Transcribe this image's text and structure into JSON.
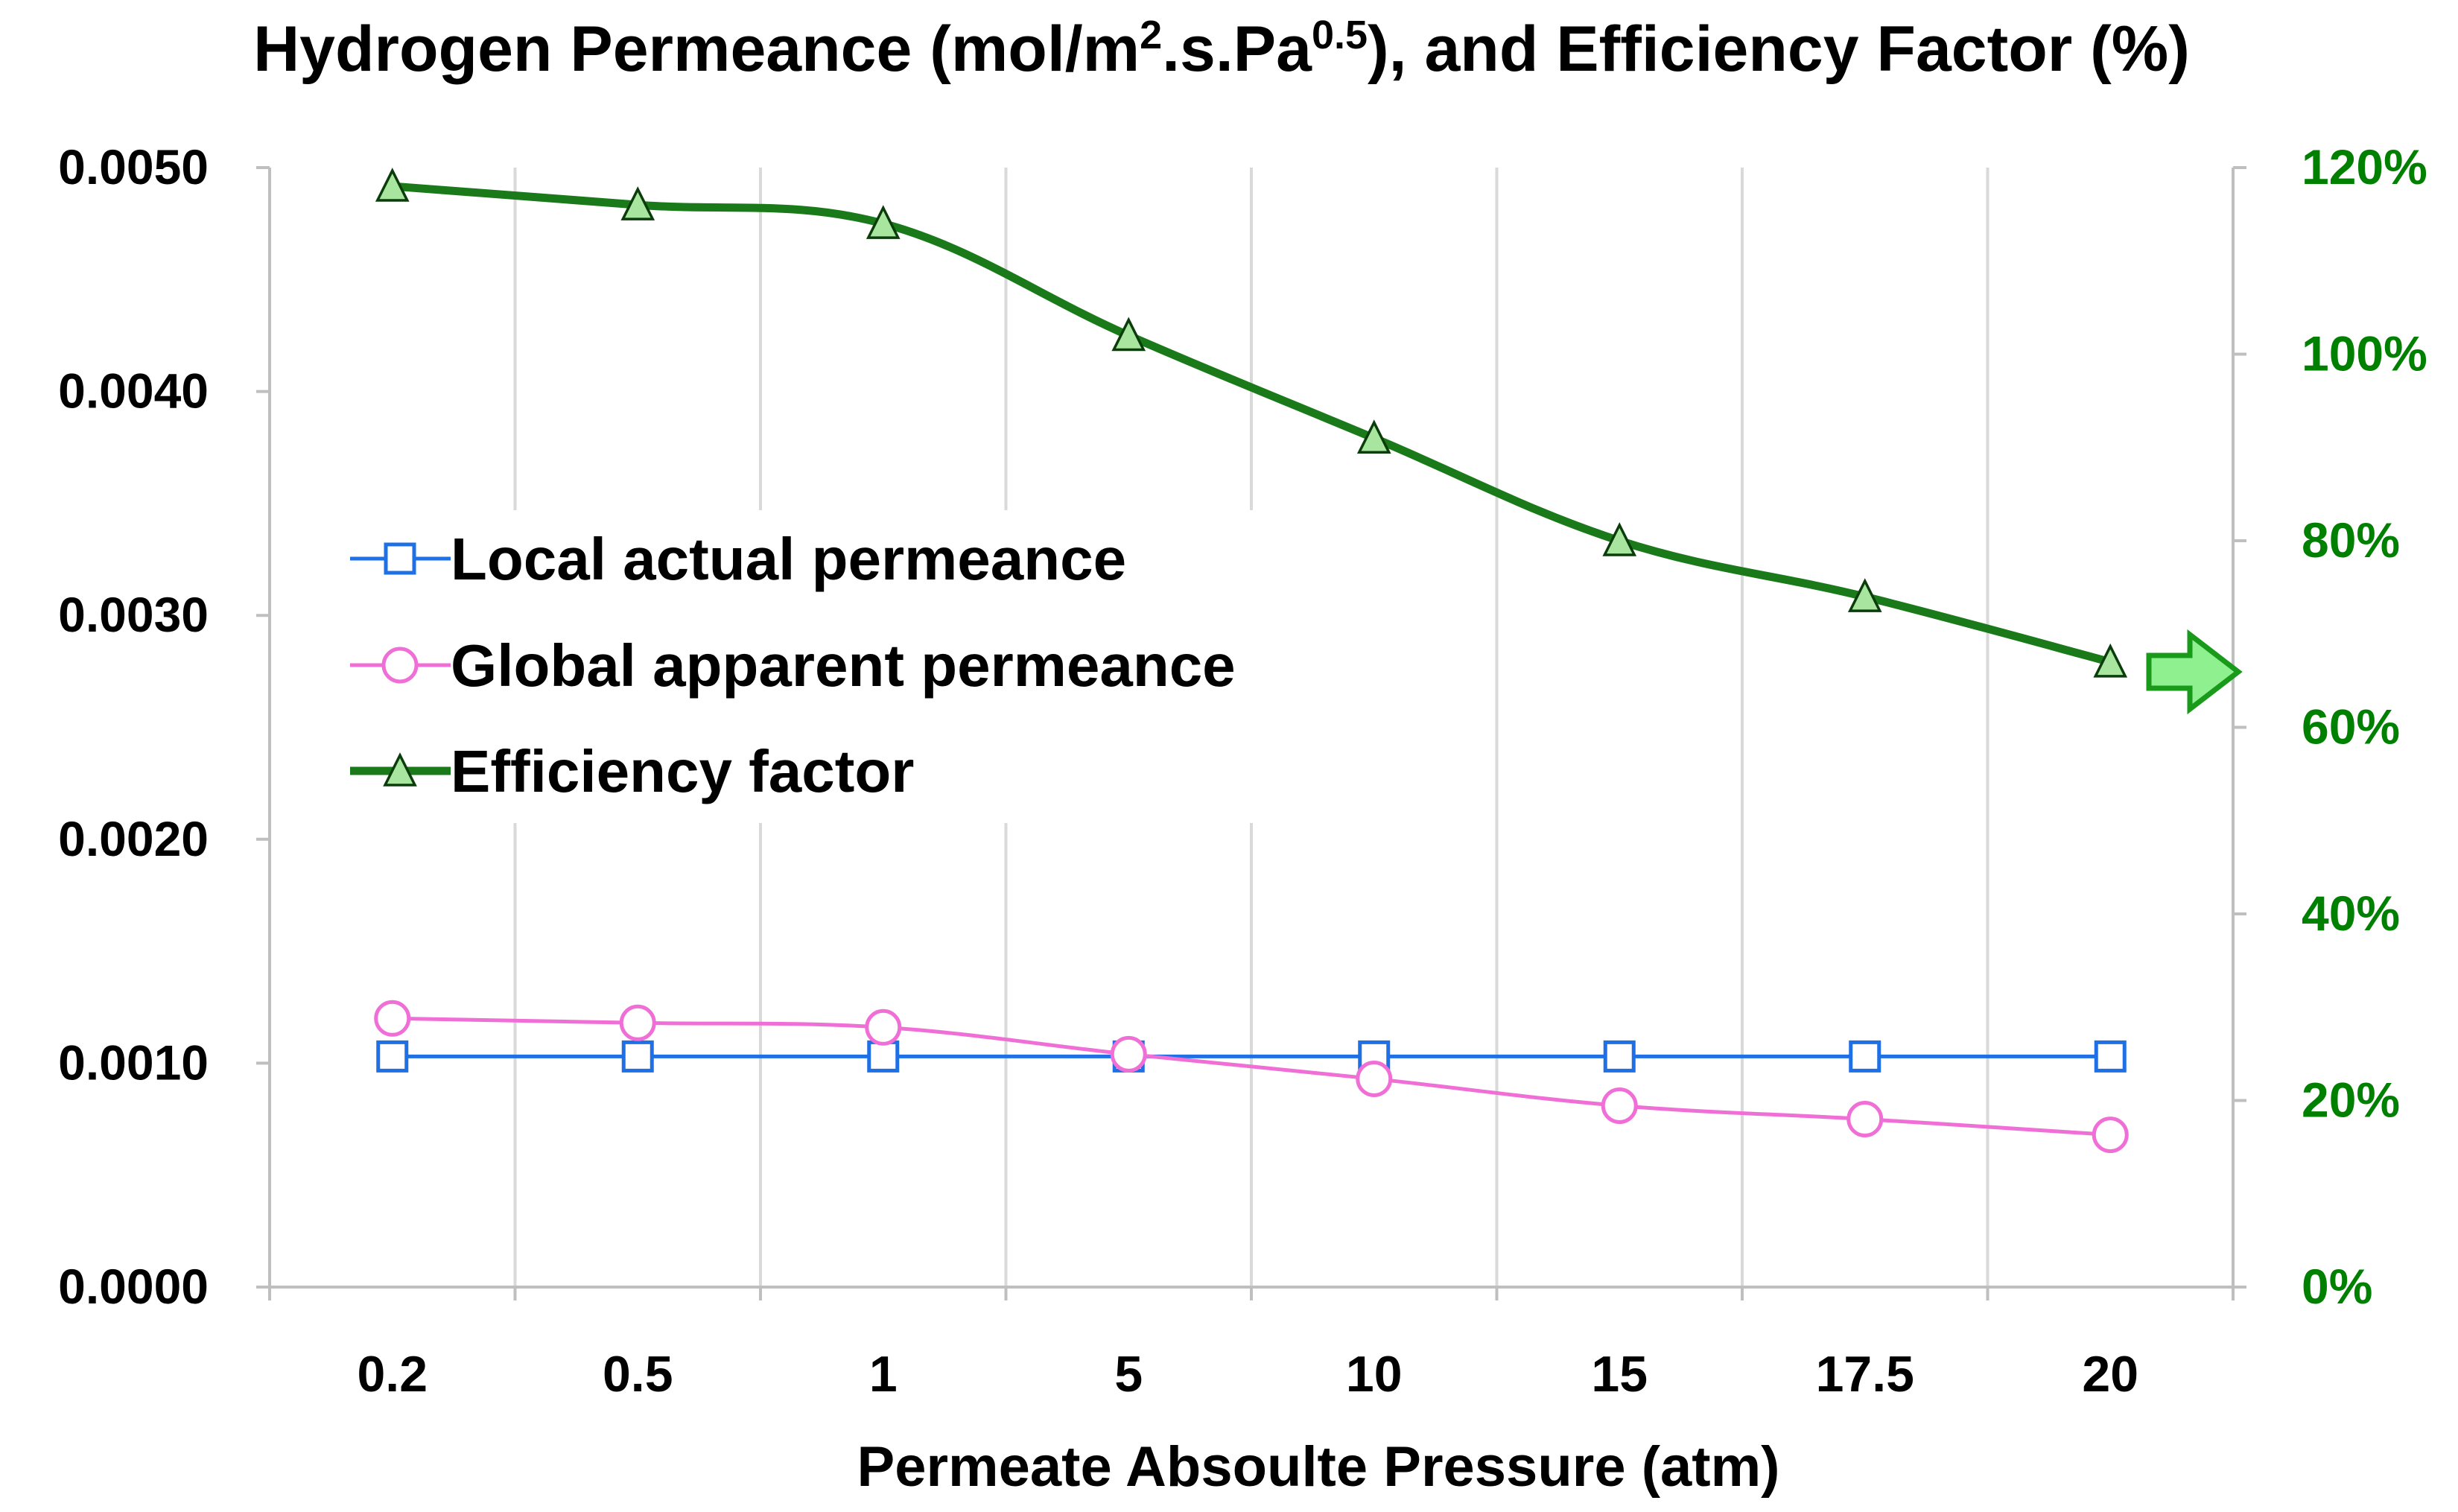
{
  "chart_data": {
    "type": "line",
    "title": {
      "prefix": "Hydrogen Permeance (mol/m",
      "sup1": "2",
      "middle": ".s.Pa",
      "sup2": "0.5",
      "suffix": "), and Efficiency Factor (%)"
    },
    "xlabel": "Permeate Absoulte Pressure (atm)",
    "categories": [
      "0.2",
      "0.5",
      "1",
      "5",
      "10",
      "15",
      "17.5",
      "20"
    ],
    "y_left": {
      "range": [
        0,
        0.005
      ],
      "ticks": [
        "0.0000",
        "0.0010",
        "0.0020",
        "0.0030",
        "0.0040",
        "0.0050"
      ],
      "tick_values": [
        0,
        0.001,
        0.002,
        0.003,
        0.004,
        0.005
      ]
    },
    "y_right": {
      "range": [
        0,
        1.2
      ],
      "ticks": [
        "0%",
        "20%",
        "40%",
        "60%",
        "80%",
        "100%",
        "120%"
      ],
      "tick_values": [
        0,
        0.2,
        0.4,
        0.6,
        0.8,
        1.0,
        1.2
      ],
      "color": "#008000"
    },
    "grid": "vertical",
    "legend_position": "upper-left",
    "series": [
      {
        "name": "Local actual permeance",
        "axis": "left",
        "marker": "square",
        "color": "#1f6fe5",
        "values": [
          0.00103,
          0.00103,
          0.00103,
          0.00103,
          0.00103,
          0.00103,
          0.00103,
          0.00103
        ]
      },
      {
        "name": "Global apparent permeance",
        "axis": "left",
        "marker": "circle",
        "color": "#f06fd6",
        "values": [
          0.0012,
          0.00118,
          0.00116,
          0.00104,
          0.00093,
          0.00081,
          0.00075,
          0.00068
        ]
      },
      {
        "name": "Efficiency factor",
        "axis": "right",
        "marker": "triangle",
        "color": "#1a7a1a",
        "marker_fill": "#a8e6a0",
        "values": [
          1.18,
          1.16,
          1.14,
          1.02,
          0.91,
          0.8,
          0.74,
          0.67
        ]
      }
    ],
    "annotation": "arrow-pointing-to-right-axis",
    "annotation_color": "#8ef08e"
  }
}
